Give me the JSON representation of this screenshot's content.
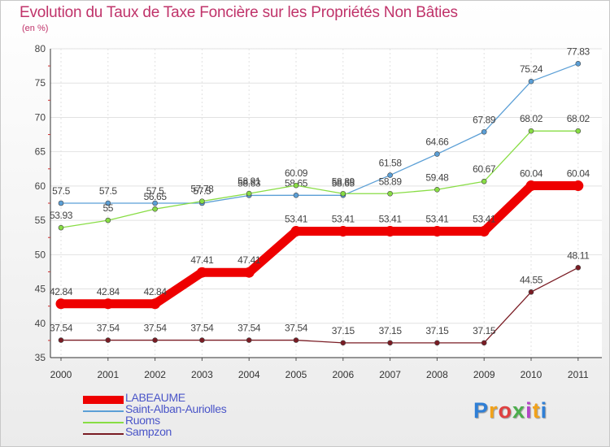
{
  "chart_data": {
    "type": "line",
    "title": "Evolution du Taux de Taxe Foncière sur les Propriétés Non Bâties",
    "subtitle": "(en %)",
    "xlabel": "",
    "ylabel": "",
    "categories": [
      "2000",
      "2001",
      "2002",
      "2003",
      "2004",
      "2005",
      "2006",
      "2007",
      "2008",
      "2009",
      "2010",
      "2011"
    ],
    "ylim": [
      35,
      80
    ],
    "yticks": [
      35,
      40,
      45,
      50,
      55,
      60,
      65,
      70,
      75,
      80
    ],
    "legend_position": "bottom-left",
    "series": [
      {
        "name": "LABEAUME",
        "color": "#ee0000",
        "values": [
          42.84,
          42.84,
          42.84,
          47.41,
          47.41,
          53.41,
          53.41,
          53.41,
          53.41,
          53.41,
          60.04,
          60.04
        ],
        "labels": [
          "42.84",
          "42.84",
          "42.84",
          "47.41",
          "47.41",
          "53.41",
          "53.41",
          "53.41",
          "53.41",
          "53.41",
          "60.04",
          "60.04"
        ]
      },
      {
        "name": "Saint-Alban-Auriolles",
        "color": "#5b9fd6",
        "values": [
          57.5,
          57.5,
          57.5,
          57.5,
          58.63,
          58.65,
          58.65,
          61.58,
          64.66,
          67.89,
          75.24,
          77.83
        ],
        "labels": [
          "57.5",
          "57.5",
          "57.5",
          "57.5",
          "58.63",
          "58.65",
          "58.65",
          "61.58",
          "64.66",
          "67.89",
          "75.24",
          "77.83"
        ]
      },
      {
        "name": "Ruoms",
        "color": "#88dd44",
        "values": [
          53.93,
          55,
          56.65,
          57.78,
          58.91,
          60.09,
          58.89,
          58.89,
          59.48,
          60.67,
          68.02,
          68.02
        ],
        "labels": [
          "53.93",
          "55",
          "56.65",
          "57.78",
          "58.91",
          "60.09",
          "58.89",
          "58.89",
          "59.48",
          "60.67",
          "68.02",
          "68.02"
        ]
      },
      {
        "name": "Sampzon",
        "color": "#7a1c24",
        "values": [
          37.54,
          37.54,
          37.54,
          37.54,
          37.54,
          37.54,
          37.15,
          37.15,
          37.15,
          37.15,
          44.55,
          48.11
        ],
        "labels": [
          "37.54",
          "37.54",
          "37.54",
          "37.54",
          "37.54",
          "37.54",
          "37.15",
          "37.15",
          "37.15",
          "37.15",
          "44.55",
          "48.11"
        ]
      }
    ]
  },
  "logo": {
    "letters": [
      "P",
      "r",
      "o",
      "x",
      "i",
      "t",
      "i"
    ]
  }
}
